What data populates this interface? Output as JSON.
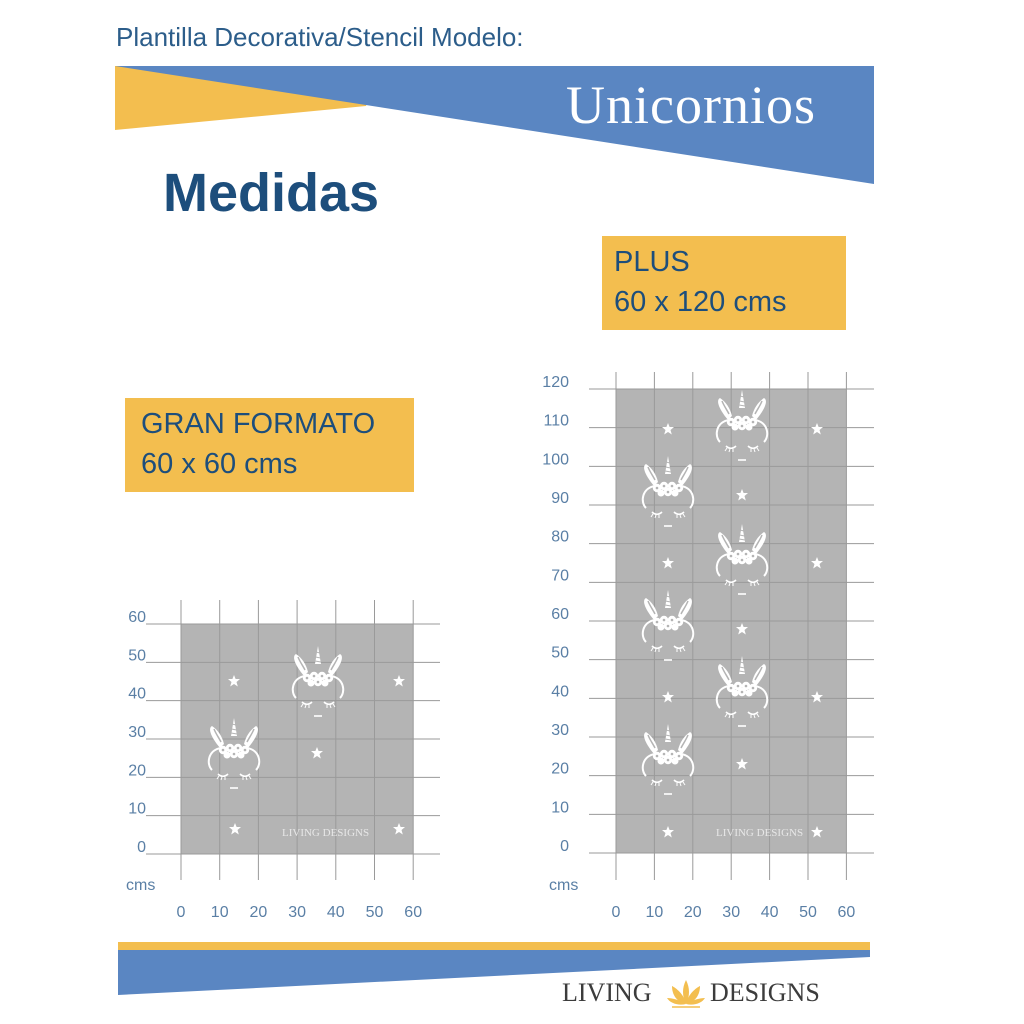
{
  "header": {
    "subtitle": "Plantilla Decorativa/Stencil Modelo:",
    "banner_title": "Unicornios"
  },
  "section_title": "Medidas",
  "sizes": [
    {
      "name": "PLUS",
      "dimensions": "60 x 120 cms"
    },
    {
      "name": "GRAN FORMATO",
      "dimensions": "60 x 60 cms"
    }
  ],
  "charts": [
    {
      "id": "gran-formato",
      "unit_label": "cms",
      "x_ticks": [
        "0",
        "10",
        "20",
        "30",
        "40",
        "50",
        "60"
      ],
      "y_ticks": [
        "60",
        "50",
        "40",
        "30",
        "20",
        "10",
        "0"
      ],
      "width_cm": 60,
      "height_cm": 60,
      "watermark": "LIVING DESIGNS"
    },
    {
      "id": "plus",
      "unit_label": "cms",
      "x_ticks": [
        "0",
        "10",
        "20",
        "30",
        "40",
        "50",
        "60"
      ],
      "y_ticks": [
        "120",
        "110",
        "100",
        "90",
        "80",
        "70",
        "60",
        "50",
        "40",
        "30",
        "20",
        "10",
        "0"
      ],
      "width_cm": 60,
      "height_cm": 120,
      "watermark": "LIVING DESIGNS"
    }
  ],
  "footer": {
    "logo_left": "LIVING",
    "logo_right": "DESIGNS"
  },
  "colors": {
    "blue": "#5a86c2",
    "yellow": "#f3be4f",
    "dark_blue": "#1d4e7c",
    "stencil_gray": "#b4b4b4",
    "grid": "#9a9a9a"
  },
  "icons": [
    "unicorn-head-icon",
    "star-icon",
    "lotus-logo-icon"
  ]
}
